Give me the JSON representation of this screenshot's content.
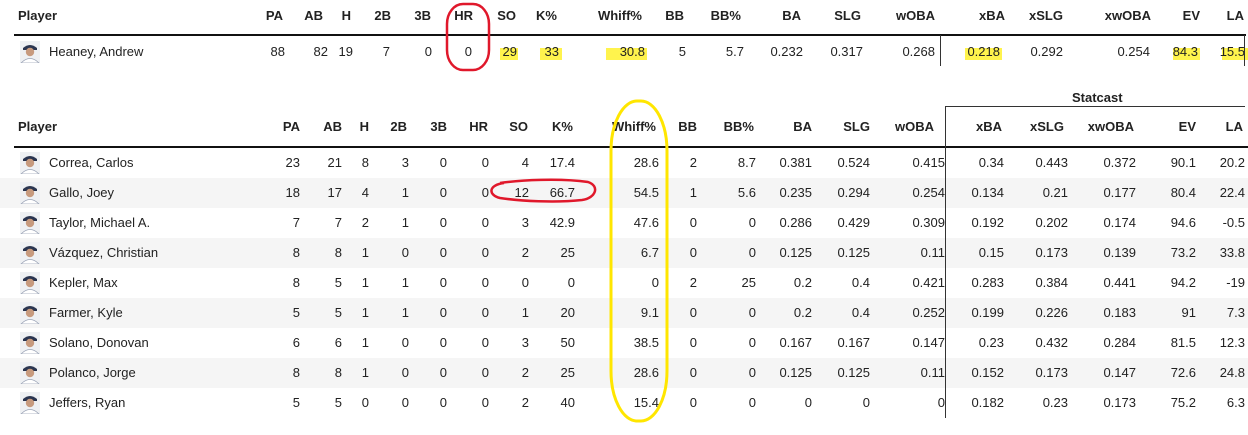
{
  "columns": [
    "Player",
    "PA",
    "AB",
    "H",
    "2B",
    "3B",
    "HR",
    "SO",
    "K%",
    "Whiff%",
    "BB",
    "BB%",
    "BA",
    "SLG",
    "wOBA",
    "xBA",
    "xSLG",
    "xwOBA",
    "EV",
    "LA"
  ],
  "statcast_label": "Statcast",
  "top_table": {
    "rows": [
      {
        "player": "Heaney, Andrew",
        "PA": "88",
        "AB": "82",
        "H": "19",
        "2B": "7",
        "3B": "0",
        "HR": "0",
        "SO": "29",
        "K%": "33",
        "Whiff%": "30.8",
        "BB": "5",
        "BB%": "5.7",
        "BA": "0.232",
        "SLG": "0.317",
        "wOBA": "0.268",
        "xBA": "0.218",
        "xSLG": "0.292",
        "xwOBA": "0.254",
        "EV": "84.3",
        "LA": "15.5"
      }
    ]
  },
  "bottom_table": {
    "rows": [
      {
        "player": "Correa, Carlos",
        "PA": "23",
        "AB": "21",
        "H": "8",
        "2B": "3",
        "3B": "0",
        "HR": "0",
        "SO": "4",
        "K%": "17.4",
        "Whiff%": "28.6",
        "BB": "2",
        "BB%": "8.7",
        "BA": "0.381",
        "SLG": "0.524",
        "wOBA": "0.415",
        "xBA": "0.34",
        "xSLG": "0.443",
        "xwOBA": "0.372",
        "EV": "90.1",
        "LA": "20.2"
      },
      {
        "player": "Gallo, Joey",
        "PA": "18",
        "AB": "17",
        "H": "4",
        "2B": "1",
        "3B": "0",
        "HR": "0",
        "SO": "12",
        "K%": "66.7",
        "Whiff%": "54.5",
        "BB": "1",
        "BB%": "5.6",
        "BA": "0.235",
        "SLG": "0.294",
        "wOBA": "0.254",
        "xBA": "0.134",
        "xSLG": "0.21",
        "xwOBA": "0.177",
        "EV": "80.4",
        "LA": "22.4"
      },
      {
        "player": "Taylor, Michael A.",
        "PA": "7",
        "AB": "7",
        "H": "2",
        "2B": "1",
        "3B": "0",
        "HR": "0",
        "SO": "3",
        "K%": "42.9",
        "Whiff%": "47.6",
        "BB": "0",
        "BB%": "0",
        "BA": "0.286",
        "SLG": "0.429",
        "wOBA": "0.309",
        "xBA": "0.192",
        "xSLG": "0.202",
        "xwOBA": "0.174",
        "EV": "94.6",
        "LA": "-0.5"
      },
      {
        "player": "Vázquez, Christian",
        "PA": "8",
        "AB": "8",
        "H": "1",
        "2B": "0",
        "3B": "0",
        "HR": "0",
        "SO": "2",
        "K%": "25",
        "Whiff%": "6.7",
        "BB": "0",
        "BB%": "0",
        "BA": "0.125",
        "SLG": "0.125",
        "wOBA": "0.11",
        "xBA": "0.15",
        "xSLG": "0.173",
        "xwOBA": "0.139",
        "EV": "73.2",
        "LA": "33.8"
      },
      {
        "player": "Kepler, Max",
        "PA": "8",
        "AB": "5",
        "H": "1",
        "2B": "1",
        "3B": "0",
        "HR": "0",
        "SO": "0",
        "K%": "0",
        "Whiff%": "0",
        "BB": "2",
        "BB%": "25",
        "BA": "0.2",
        "SLG": "0.4",
        "wOBA": "0.421",
        "xBA": "0.283",
        "xSLG": "0.384",
        "xwOBA": "0.441",
        "EV": "94.2",
        "LA": "-19"
      },
      {
        "player": "Farmer, Kyle",
        "PA": "5",
        "AB": "5",
        "H": "1",
        "2B": "1",
        "3B": "0",
        "HR": "0",
        "SO": "1",
        "K%": "20",
        "Whiff%": "9.1",
        "BB": "0",
        "BB%": "0",
        "BA": "0.2",
        "SLG": "0.4",
        "wOBA": "0.252",
        "xBA": "0.199",
        "xSLG": "0.226",
        "xwOBA": "0.183",
        "EV": "91",
        "LA": "7.3"
      },
      {
        "player": "Solano, Donovan",
        "PA": "6",
        "AB": "6",
        "H": "1",
        "2B": "0",
        "3B": "0",
        "HR": "0",
        "SO": "3",
        "K%": "50",
        "Whiff%": "38.5",
        "BB": "0",
        "BB%": "0",
        "BA": "0.167",
        "SLG": "0.167",
        "wOBA": "0.147",
        "xBA": "0.23",
        "xSLG": "0.432",
        "xwOBA": "0.284",
        "EV": "81.5",
        "LA": "12.3"
      },
      {
        "player": "Polanco, Jorge",
        "PA": "8",
        "AB": "8",
        "H": "1",
        "2B": "0",
        "3B": "0",
        "HR": "0",
        "SO": "2",
        "K%": "25",
        "Whiff%": "28.6",
        "BB": "0",
        "BB%": "0",
        "BA": "0.125",
        "SLG": "0.125",
        "wOBA": "0.11",
        "xBA": "0.152",
        "xSLG": "0.173",
        "xwOBA": "0.147",
        "EV": "72.6",
        "LA": "24.8"
      },
      {
        "player": "Jeffers, Ryan",
        "PA": "5",
        "AB": "5",
        "H": "0",
        "2B": "0",
        "3B": "0",
        "HR": "0",
        "SO": "2",
        "K%": "40",
        "Whiff%": "15.4",
        "BB": "0",
        "BB%": "0",
        "BA": "0",
        "SLG": "0",
        "wOBA": "0",
        "xBA": "0.182",
        "xSLG": "0.23",
        "xwOBA": "0.173",
        "EV": "75.2",
        "LA": "6.3"
      }
    ]
  },
  "colors": {
    "highlight": "#fff34d",
    "circle_red": "#e0182b",
    "circle_yellow": "#ffe600",
    "row_alt": "#f5f5f5"
  },
  "icons": {
    "avatar": "player-headshot-icon"
  }
}
